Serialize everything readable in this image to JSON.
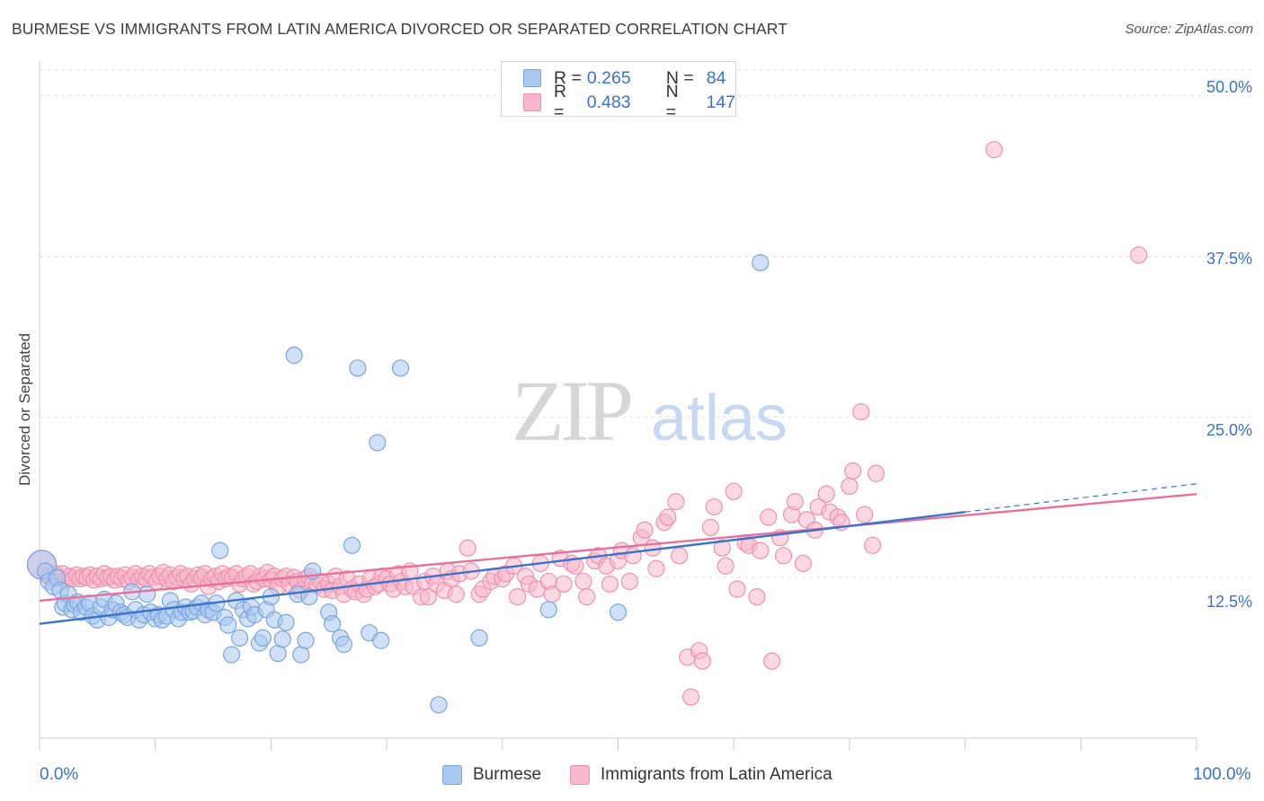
{
  "title": "BURMESE VS IMMIGRANTS FROM LATIN AMERICA DIVORCED OR SEPARATED CORRELATION CHART",
  "source": "Source: ZipAtlas.com",
  "watermark": {
    "zip": "ZIP",
    "atlas": "atlas"
  },
  "legend": {
    "rows": [
      {
        "r_label": "R =",
        "r_value": "0.265",
        "n_label": "N =",
        "n_value": "84"
      },
      {
        "r_label": "R =",
        "r_value": "0.483",
        "n_label": "N =",
        "n_value": "147"
      }
    ]
  },
  "colors": {
    "burmese_fill": "#a9c8f0",
    "burmese_stroke": "#7aa5dc",
    "burmese_line": "#3a73c8",
    "latin_fill": "#f7b8cb",
    "latin_stroke": "#ec92ae",
    "latin_line": "#e8709a",
    "tick_text": "#3a73c8",
    "grid": "#e0e0e0"
  },
  "chart_data": {
    "type": "scatter",
    "title": "BURMESE VS IMMIGRANTS FROM LATIN AMERICA DIVORCED OR SEPARATED CORRELATION CHART",
    "xlabel": "",
    "ylabel": "Divorced or Separated",
    "xlim": [
      0,
      100
    ],
    "ylim": [
      0,
      52
    ],
    "x_tick_labels": {
      "left": "0.0%",
      "right": "100.0%"
    },
    "y_ticks": [
      12.5,
      25.0,
      37.5,
      50.0
    ],
    "y_tick_labels": [
      "12.5%",
      "25.0%",
      "37.5%",
      "50.0%"
    ],
    "grid": true,
    "legend_position": "top-center",
    "series": [
      {
        "name": "Burmese",
        "r": 0.265,
        "n": 84,
        "trend": {
          "x0": 0,
          "y0": 8.9,
          "x1": 80,
          "y1": 17.6,
          "dash_to_x": 100,
          "dash_to_y": 19.8
        },
        "points": [
          [
            0.2,
            13.5
          ],
          [
            0.5,
            13.0
          ],
          [
            0.8,
            12.2
          ],
          [
            1.2,
            11.8
          ],
          [
            1.5,
            12.5
          ],
          [
            1.8,
            11.5
          ],
          [
            2.0,
            10.2
          ],
          [
            2.2,
            10.5
          ],
          [
            2.5,
            11.2
          ],
          [
            2.8,
            10.0
          ],
          [
            3.0,
            10.4
          ],
          [
            3.3,
            10.6
          ],
          [
            3.6,
            9.8
          ],
          [
            4.0,
            10.2
          ],
          [
            4.3,
            10.5
          ],
          [
            4.6,
            9.5
          ],
          [
            5.0,
            9.2
          ],
          [
            5.3,
            10.2
          ],
          [
            5.6,
            10.8
          ],
          [
            6.0,
            9.4
          ],
          [
            6.3,
            10.0
          ],
          [
            6.6,
            10.5
          ],
          [
            7.0,
            9.8
          ],
          [
            7.3,
            9.6
          ],
          [
            7.6,
            9.4
          ],
          [
            8.0,
            11.4
          ],
          [
            8.3,
            10.0
          ],
          [
            8.6,
            9.2
          ],
          [
            9.0,
            9.6
          ],
          [
            9.3,
            11.2
          ],
          [
            9.6,
            9.8
          ],
          [
            10.0,
            9.3
          ],
          [
            10.3,
            9.6
          ],
          [
            10.6,
            9.2
          ],
          [
            11.0,
            9.5
          ],
          [
            11.3,
            10.7
          ],
          [
            11.6,
            10.0
          ],
          [
            12.0,
            9.3
          ],
          [
            12.3,
            9.8
          ],
          [
            12.6,
            10.2
          ],
          [
            13.0,
            9.8
          ],
          [
            13.3,
            9.9
          ],
          [
            13.6,
            10.2
          ],
          [
            14.0,
            10.5
          ],
          [
            14.3,
            9.6
          ],
          [
            14.6,
            10.0
          ],
          [
            15.0,
            9.8
          ],
          [
            15.3,
            10.5
          ],
          [
            15.6,
            14.6
          ],
          [
            16.0,
            9.4
          ],
          [
            16.3,
            8.8
          ],
          [
            16.6,
            6.5
          ],
          [
            17.0,
            10.7
          ],
          [
            17.3,
            7.8
          ],
          [
            17.6,
            10.0
          ],
          [
            18.0,
            9.3
          ],
          [
            18.3,
            10.2
          ],
          [
            18.6,
            9.6
          ],
          [
            19.0,
            7.4
          ],
          [
            19.3,
            7.8
          ],
          [
            19.6,
            10.0
          ],
          [
            20.0,
            11.0
          ],
          [
            20.3,
            9.2
          ],
          [
            20.6,
            6.6
          ],
          [
            21.0,
            7.7
          ],
          [
            21.3,
            9.0
          ],
          [
            22.0,
            29.8
          ],
          [
            22.3,
            11.2
          ],
          [
            22.6,
            6.5
          ],
          [
            23.0,
            7.6
          ],
          [
            23.3,
            11.0
          ],
          [
            23.6,
            13.0
          ],
          [
            25.0,
            9.8
          ],
          [
            25.3,
            8.9
          ],
          [
            26.0,
            7.8
          ],
          [
            26.3,
            7.3
          ],
          [
            27.0,
            15.0
          ],
          [
            27.5,
            28.8
          ],
          [
            28.5,
            8.2
          ],
          [
            29.5,
            7.6
          ],
          [
            29.2,
            23.0
          ],
          [
            31.2,
            28.8
          ],
          [
            34.5,
            2.6
          ],
          [
            38.0,
            7.8
          ],
          [
            44.0,
            10.0
          ],
          [
            50.0,
            9.8
          ],
          [
            62.3,
            37.0
          ]
        ]
      },
      {
        "name": "Immigrants from Latin America",
        "r": 0.483,
        "n": 147,
        "trend": {
          "x0": 0,
          "y0": 10.7,
          "x1": 100,
          "y1": 19.0
        },
        "points": [
          [
            0.2,
            13.5
          ],
          [
            0.5,
            13.0
          ],
          [
            0.8,
            12.6
          ],
          [
            1.1,
            12.4
          ],
          [
            1.4,
            12.8
          ],
          [
            1.7,
            12.5
          ],
          [
            2.0,
            12.8
          ],
          [
            2.3,
            12.3
          ],
          [
            2.6,
            12.6
          ],
          [
            2.9,
            12.4
          ],
          [
            3.2,
            12.7
          ],
          [
            3.5,
            12.4
          ],
          [
            3.8,
            12.6
          ],
          [
            4.1,
            12.5
          ],
          [
            4.4,
            12.7
          ],
          [
            4.7,
            12.3
          ],
          [
            5.0,
            12.6
          ],
          [
            5.3,
            12.4
          ],
          [
            5.6,
            12.8
          ],
          [
            5.9,
            12.5
          ],
          [
            6.2,
            12.6
          ],
          [
            6.5,
            12.3
          ],
          [
            6.8,
            12.6
          ],
          [
            7.1,
            12.4
          ],
          [
            7.4,
            12.7
          ],
          [
            7.7,
            12.2
          ],
          [
            8.0,
            12.5
          ],
          [
            8.3,
            12.8
          ],
          [
            8.6,
            12.3
          ],
          [
            8.9,
            12.6
          ],
          [
            9.2,
            12.4
          ],
          [
            9.5,
            12.8
          ],
          [
            9.8,
            12.5
          ],
          [
            10.1,
            12.2
          ],
          [
            10.4,
            12.6
          ],
          [
            10.7,
            12.9
          ],
          [
            11.0,
            12.4
          ],
          [
            11.3,
            12.7
          ],
          [
            11.6,
            12.2
          ],
          [
            11.9,
            12.5
          ],
          [
            12.2,
            12.8
          ],
          [
            12.5,
            12.4
          ],
          [
            12.8,
            12.6
          ],
          [
            13.1,
            12.0
          ],
          [
            13.4,
            12.4
          ],
          [
            13.7,
            12.7
          ],
          [
            14.0,
            12.5
          ],
          [
            14.3,
            12.8
          ],
          [
            14.6,
            11.8
          ],
          [
            14.9,
            12.4
          ],
          [
            15.2,
            12.6
          ],
          [
            15.5,
            12.2
          ],
          [
            15.8,
            12.8
          ],
          [
            16.1,
            12.4
          ],
          [
            16.4,
            12.6
          ],
          [
            16.7,
            12.5
          ],
          [
            17.0,
            12.8
          ],
          [
            17.3,
            12.0
          ],
          [
            17.6,
            12.4
          ],
          [
            17.9,
            12.6
          ],
          [
            18.2,
            12.8
          ],
          [
            18.5,
            12.0
          ],
          [
            18.8,
            12.2
          ],
          [
            19.1,
            12.6
          ],
          [
            19.4,
            12.4
          ],
          [
            19.7,
            12.9
          ],
          [
            20.0,
            12.3
          ],
          [
            20.3,
            12.6
          ],
          [
            20.6,
            11.8
          ],
          [
            21.0,
            12.4
          ],
          [
            21.3,
            12.6
          ],
          [
            21.6,
            12.0
          ],
          [
            22.0,
            12.5
          ],
          [
            22.3,
            12.2
          ],
          [
            22.6,
            11.5
          ],
          [
            23.0,
            12.4
          ],
          [
            23.3,
            12.6
          ],
          [
            23.6,
            12.0
          ],
          [
            24.0,
            11.9
          ],
          [
            24.3,
            12.2
          ],
          [
            24.6,
            11.6
          ],
          [
            25.0,
            12.0
          ],
          [
            25.3,
            11.5
          ],
          [
            25.6,
            12.6
          ],
          [
            26.0,
            11.8
          ],
          [
            26.3,
            11.2
          ],
          [
            26.6,
            12.4
          ],
          [
            27.0,
            11.6
          ],
          [
            27.3,
            11.4
          ],
          [
            27.6,
            12.0
          ],
          [
            28.0,
            11.2
          ],
          [
            28.3,
            11.6
          ],
          [
            28.6,
            12.4
          ],
          [
            29.0,
            11.8
          ],
          [
            29.3,
            12.0
          ],
          [
            29.6,
            12.6
          ],
          [
            30.0,
            12.4
          ],
          [
            30.3,
            12.0
          ],
          [
            30.6,
            11.6
          ],
          [
            31.0,
            12.8
          ],
          [
            31.3,
            12.2
          ],
          [
            31.6,
            11.8
          ],
          [
            32.0,
            13.0
          ],
          [
            32.3,
            11.8
          ],
          [
            33.0,
            11.0
          ],
          [
            33.3,
            12.2
          ],
          [
            33.6,
            11.0
          ],
          [
            34.0,
            12.6
          ],
          [
            34.3,
            12.0
          ],
          [
            35.0,
            11.5
          ],
          [
            35.3,
            13.0
          ],
          [
            35.6,
            12.4
          ],
          [
            36.0,
            11.2
          ],
          [
            36.3,
            12.8
          ],
          [
            37.0,
            14.8
          ],
          [
            37.3,
            13.0
          ],
          [
            38.0,
            11.2
          ],
          [
            38.3,
            11.6
          ],
          [
            39.0,
            12.2
          ],
          [
            39.3,
            12.6
          ],
          [
            40.0,
            12.4
          ],
          [
            40.3,
            12.8
          ],
          [
            41.0,
            13.4
          ],
          [
            41.3,
            11.0
          ],
          [
            42.0,
            12.6
          ],
          [
            42.3,
            12.0
          ],
          [
            43.0,
            11.6
          ],
          [
            43.3,
            13.6
          ],
          [
            44.0,
            12.2
          ],
          [
            44.3,
            11.2
          ],
          [
            45.0,
            14.0
          ],
          [
            45.3,
            12.0
          ],
          [
            46.0,
            13.6
          ],
          [
            46.3,
            13.4
          ],
          [
            47.0,
            12.2
          ],
          [
            47.3,
            11.0
          ],
          [
            48.0,
            13.8
          ],
          [
            48.3,
            14.2
          ],
          [
            49.0,
            13.4
          ],
          [
            49.3,
            12.0
          ],
          [
            50.0,
            13.8
          ],
          [
            50.3,
            14.6
          ],
          [
            51.0,
            12.2
          ],
          [
            51.3,
            14.2
          ],
          [
            52.0,
            15.6
          ],
          [
            52.3,
            16.2
          ],
          [
            53.0,
            14.8
          ],
          [
            53.3,
            13.2
          ],
          [
            54.0,
            16.8
          ],
          [
            54.3,
            17.2
          ],
          [
            55.0,
            18.4
          ],
          [
            55.3,
            14.2
          ],
          [
            56.0,
            6.3
          ],
          [
            56.3,
            3.2
          ],
          [
            57.0,
            6.8
          ],
          [
            57.3,
            6.0
          ],
          [
            58.0,
            16.4
          ],
          [
            58.3,
            18.0
          ],
          [
            59.0,
            14.8
          ],
          [
            59.3,
            13.4
          ],
          [
            60.0,
            19.2
          ],
          [
            60.3,
            11.6
          ],
          [
            61.0,
            15.2
          ],
          [
            61.3,
            15.0
          ],
          [
            62.0,
            11.0
          ],
          [
            62.3,
            14.6
          ],
          [
            63.0,
            17.2
          ],
          [
            63.3,
            6.0
          ],
          [
            64.0,
            15.6
          ],
          [
            64.3,
            14.2
          ],
          [
            65.0,
            17.4
          ],
          [
            65.3,
            18.4
          ],
          [
            66.0,
            13.6
          ],
          [
            66.3,
            17.0
          ],
          [
            67.0,
            16.2
          ],
          [
            67.3,
            18.0
          ],
          [
            68.0,
            19.0
          ],
          [
            68.3,
            17.6
          ],
          [
            69.0,
            17.2
          ],
          [
            69.3,
            16.8
          ],
          [
            70.0,
            19.6
          ],
          [
            70.3,
            20.8
          ],
          [
            71.0,
            25.4
          ],
          [
            71.3,
            17.4
          ],
          [
            72.0,
            15.0
          ],
          [
            72.3,
            20.6
          ],
          [
            82.5,
            45.8
          ],
          [
            95.0,
            37.6
          ]
        ]
      }
    ]
  }
}
